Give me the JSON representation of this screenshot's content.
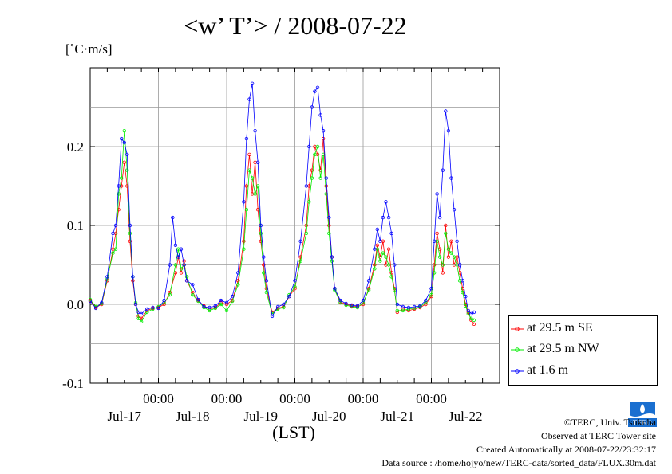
{
  "title": "<w’ T’> / 2008-07-22",
  "unit": "[˚C·m/s]",
  "xlabel": "(LST)",
  "legend": [
    "at 29.5 m SE",
    "at 29.5 m NW",
    "at 1.6 m"
  ],
  "credits": {
    "copyright": "©TERC, Univ. Tsukuba",
    "observed": "Observed at TERC Tower site",
    "created": "Created Automatically at 2008-07-22/23:32:17",
    "source": "Data source : /home/hojyo/new/TERC-data/sorted_data/FLUX.30m.dat"
  },
  "logo_text": "TERC",
  "colors": {
    "se": "#ff0000",
    "nw": "#00ee00",
    "low": "#0000ff",
    "grid": "#999999"
  },
  "chart_data": {
    "type": "line",
    "title": "<w’ T’> / 2008-07-22",
    "ylabel": "[˚C·m/s]",
    "xlabel": "(LST)",
    "ylim": [
      -0.1,
      0.3
    ],
    "yticks": [
      -0.1,
      0.0,
      0.1,
      0.2
    ],
    "ytick_labels": [
      "-0.1",
      "0.0",
      "0.1",
      "0.2"
    ],
    "xlim": [
      0,
      144
    ],
    "xticks": [
      24,
      48,
      72,
      96,
      120
    ],
    "xtick_labels": [
      "00:00",
      "00:00",
      "00:00",
      "00:00",
      "00:00"
    ],
    "day_labels": [
      "Jul-17",
      "Jul-18",
      "Jul-19",
      "Jul-20",
      "Jul-21",
      "Jul-22"
    ],
    "day_label_x": [
      12,
      36,
      60,
      84,
      108,
      132
    ],
    "x_unit": "hours from 2008-07-16 12:00 LST",
    "grid": true,
    "legend_position": "right",
    "series": [
      {
        "name": "at 29.5 m SE",
        "color": "#ff0000",
        "marker": "circle",
        "points": [
          [
            0,
            0.005
          ],
          [
            2,
            -0.004
          ],
          [
            4,
            0.0
          ],
          [
            6,
            0.03
          ],
          [
            8,
            0.07
          ],
          [
            9,
            0.09
          ],
          [
            10,
            0.12
          ],
          [
            11,
            0.15
          ],
          [
            12,
            0.18
          ],
          [
            13,
            0.15
          ],
          [
            14,
            0.08
          ],
          [
            15,
            0.03
          ],
          [
            16,
            0.0
          ],
          [
            17,
            -0.015
          ],
          [
            18,
            -0.018
          ],
          [
            20,
            -0.008
          ],
          [
            22,
            -0.005
          ],
          [
            24,
            -0.004
          ],
          [
            26,
            0.0
          ],
          [
            28,
            0.015
          ],
          [
            30,
            0.04
          ],
          [
            31,
            0.06
          ],
          [
            32,
            0.04
          ],
          [
            33,
            0.055
          ],
          [
            34,
            0.03
          ],
          [
            36,
            0.015
          ],
          [
            38,
            0.005
          ],
          [
            40,
            -0.002
          ],
          [
            42,
            -0.006
          ],
          [
            44,
            -0.004
          ],
          [
            46,
            0.002
          ],
          [
            48,
            0.0
          ],
          [
            50,
            0.005
          ],
          [
            52,
            0.03
          ],
          [
            54,
            0.08
          ],
          [
            55,
            0.15
          ],
          [
            56,
            0.19
          ],
          [
            57,
            0.14
          ],
          [
            58,
            0.18
          ],
          [
            59,
            0.12
          ],
          [
            60,
            0.08
          ],
          [
            61,
            0.05
          ],
          [
            62,
            0.02
          ],
          [
            64,
            -0.01
          ],
          [
            66,
            -0.005
          ],
          [
            68,
            -0.003
          ],
          [
            70,
            0.01
          ],
          [
            72,
            0.02
          ],
          [
            74,
            0.06
          ],
          [
            76,
            0.1
          ],
          [
            77,
            0.15
          ],
          [
            78,
            0.17
          ],
          [
            79,
            0.2
          ],
          [
            80,
            0.19
          ],
          [
            81,
            0.17
          ],
          [
            82,
            0.21
          ],
          [
            83,
            0.15
          ],
          [
            84,
            0.1
          ],
          [
            85,
            0.06
          ],
          [
            86,
            0.02
          ],
          [
            88,
            0.003
          ],
          [
            90,
            0.0
          ],
          [
            92,
            -0.002
          ],
          [
            94,
            -0.003
          ],
          [
            96,
            0.0
          ],
          [
            98,
            0.02
          ],
          [
            100,
            0.05
          ],
          [
            101,
            0.075
          ],
          [
            102,
            0.06
          ],
          [
            103,
            0.08
          ],
          [
            104,
            0.05
          ],
          [
            105,
            0.07
          ],
          [
            106,
            0.04
          ],
          [
            107,
            0.02
          ],
          [
            108,
            -0.01
          ],
          [
            110,
            -0.006
          ],
          [
            112,
            -0.008
          ],
          [
            114,
            -0.006
          ],
          [
            116,
            -0.004
          ],
          [
            118,
            0.0
          ],
          [
            120,
            0.01
          ],
          [
            121,
            0.05
          ],
          [
            122,
            0.09
          ],
          [
            123,
            0.07
          ],
          [
            124,
            0.04
          ],
          [
            125,
            0.1
          ],
          [
            126,
            0.06
          ],
          [
            127,
            0.08
          ],
          [
            128,
            0.05
          ],
          [
            129,
            0.06
          ],
          [
            130,
            0.04
          ],
          [
            131,
            0.02
          ],
          [
            132,
            0.0
          ],
          [
            133,
            -0.01
          ],
          [
            134,
            -0.02
          ],
          [
            135,
            -0.025
          ]
        ]
      },
      {
        "name": "at 29.5 m NW",
        "color": "#00ee00",
        "marker": "circle",
        "points": [
          [
            0,
            0.006
          ],
          [
            2,
            -0.003
          ],
          [
            4,
            0.001
          ],
          [
            6,
            0.032
          ],
          [
            8,
            0.065
          ],
          [
            9,
            0.07
          ],
          [
            10,
            0.14
          ],
          [
            11,
            0.16
          ],
          [
            12,
            0.22
          ],
          [
            13,
            0.17
          ],
          [
            14,
            0.09
          ],
          [
            15,
            0.035
          ],
          [
            16,
            0.002
          ],
          [
            17,
            -0.018
          ],
          [
            18,
            -0.022
          ],
          [
            20,
            -0.01
          ],
          [
            22,
            -0.006
          ],
          [
            24,
            -0.003
          ],
          [
            26,
            0.002
          ],
          [
            28,
            0.012
          ],
          [
            30,
            0.05
          ],
          [
            31,
            0.07
          ],
          [
            32,
            0.045
          ],
          [
            33,
            0.05
          ],
          [
            34,
            0.035
          ],
          [
            36,
            0.012
          ],
          [
            38,
            0.004
          ],
          [
            40,
            -0.004
          ],
          [
            42,
            -0.008
          ],
          [
            44,
            -0.005
          ],
          [
            46,
            0.0
          ],
          [
            48,
            -0.008
          ],
          [
            50,
            0.004
          ],
          [
            52,
            0.025
          ],
          [
            54,
            0.07
          ],
          [
            55,
            0.12
          ],
          [
            56,
            0.17
          ],
          [
            57,
            0.16
          ],
          [
            58,
            0.14
          ],
          [
            59,
            0.15
          ],
          [
            60,
            0.09
          ],
          [
            61,
            0.04
          ],
          [
            62,
            0.015
          ],
          [
            64,
            -0.012
          ],
          [
            66,
            -0.006
          ],
          [
            68,
            -0.004
          ],
          [
            70,
            0.012
          ],
          [
            72,
            0.022
          ],
          [
            74,
            0.055
          ],
          [
            76,
            0.09
          ],
          [
            77,
            0.13
          ],
          [
            78,
            0.16
          ],
          [
            79,
            0.19
          ],
          [
            80,
            0.2
          ],
          [
            81,
            0.16
          ],
          [
            82,
            0.19
          ],
          [
            83,
            0.14
          ],
          [
            84,
            0.09
          ],
          [
            85,
            0.055
          ],
          [
            86,
            0.018
          ],
          [
            88,
            0.002
          ],
          [
            90,
            -0.001
          ],
          [
            92,
            -0.003
          ],
          [
            94,
            -0.004
          ],
          [
            96,
            0.002
          ],
          [
            98,
            0.018
          ],
          [
            100,
            0.045
          ],
          [
            101,
            0.07
          ],
          [
            102,
            0.055
          ],
          [
            103,
            0.065
          ],
          [
            104,
            0.06
          ],
          [
            105,
            0.05
          ],
          [
            106,
            0.035
          ],
          [
            107,
            0.018
          ],
          [
            108,
            -0.008
          ],
          [
            110,
            -0.008
          ],
          [
            112,
            -0.006
          ],
          [
            114,
            -0.005
          ],
          [
            116,
            -0.003
          ],
          [
            118,
            0.002
          ],
          [
            120,
            0.012
          ],
          [
            121,
            0.04
          ],
          [
            122,
            0.08
          ],
          [
            123,
            0.06
          ],
          [
            124,
            0.05
          ],
          [
            125,
            0.09
          ],
          [
            126,
            0.07
          ],
          [
            127,
            0.065
          ],
          [
            128,
            0.06
          ],
          [
            129,
            0.05
          ],
          [
            130,
            0.03
          ],
          [
            131,
            0.015
          ],
          [
            132,
            -0.002
          ],
          [
            133,
            -0.012
          ],
          [
            134,
            -0.018
          ],
          [
            135,
            -0.02
          ]
        ]
      },
      {
        "name": "at 1.6 m",
        "color": "#0000ff",
        "marker": "circle",
        "points": [
          [
            0,
            0.004
          ],
          [
            2,
            -0.005
          ],
          [
            4,
            0.002
          ],
          [
            6,
            0.035
          ],
          [
            8,
            0.09
          ],
          [
            9,
            0.1
          ],
          [
            10,
            0.15
          ],
          [
            11,
            0.21
          ],
          [
            12,
            0.205
          ],
          [
            13,
            0.19
          ],
          [
            14,
            0.1
          ],
          [
            15,
            0.035
          ],
          [
            16,
            0.0
          ],
          [
            17,
            -0.01
          ],
          [
            18,
            -0.012
          ],
          [
            20,
            -0.006
          ],
          [
            22,
            -0.004
          ],
          [
            24,
            -0.005
          ],
          [
            26,
            0.005
          ],
          [
            28,
            0.05
          ],
          [
            29,
            0.11
          ],
          [
            30,
            0.075
          ],
          [
            31,
            0.06
          ],
          [
            32,
            0.07
          ],
          [
            33,
            0.05
          ],
          [
            34,
            0.03
          ],
          [
            36,
            0.025
          ],
          [
            38,
            0.006
          ],
          [
            40,
            -0.003
          ],
          [
            42,
            -0.004
          ],
          [
            44,
            -0.002
          ],
          [
            46,
            0.005
          ],
          [
            48,
            0.002
          ],
          [
            50,
            0.01
          ],
          [
            52,
            0.04
          ],
          [
            54,
            0.13
          ],
          [
            55,
            0.21
          ],
          [
            56,
            0.26
          ],
          [
            57,
            0.28
          ],
          [
            58,
            0.22
          ],
          [
            59,
            0.18
          ],
          [
            60,
            0.1
          ],
          [
            61,
            0.06
          ],
          [
            62,
            0.03
          ],
          [
            64,
            -0.015
          ],
          [
            66,
            -0.003
          ],
          [
            68,
            0.0
          ],
          [
            70,
            0.01
          ],
          [
            72,
            0.03
          ],
          [
            74,
            0.08
          ],
          [
            76,
            0.15
          ],
          [
            77,
            0.2
          ],
          [
            78,
            0.25
          ],
          [
            79,
            0.27
          ],
          [
            80,
            0.275
          ],
          [
            81,
            0.24
          ],
          [
            82,
            0.22
          ],
          [
            83,
            0.16
          ],
          [
            84,
            0.11
          ],
          [
            85,
            0.06
          ],
          [
            86,
            0.02
          ],
          [
            88,
            0.005
          ],
          [
            90,
            0.001
          ],
          [
            92,
            -0.001
          ],
          [
            94,
            -0.002
          ],
          [
            96,
            0.005
          ],
          [
            98,
            0.03
          ],
          [
            100,
            0.07
          ],
          [
            101,
            0.095
          ],
          [
            102,
            0.08
          ],
          [
            103,
            0.11
          ],
          [
            104,
            0.13
          ],
          [
            105,
            0.11
          ],
          [
            106,
            0.09
          ],
          [
            107,
            0.05
          ],
          [
            108,
            0.0
          ],
          [
            110,
            -0.003
          ],
          [
            112,
            -0.004
          ],
          [
            114,
            -0.003
          ],
          [
            116,
            -0.002
          ],
          [
            118,
            0.005
          ],
          [
            120,
            0.02
          ],
          [
            121,
            0.08
          ],
          [
            122,
            0.14
          ],
          [
            123,
            0.11
          ],
          [
            124,
            0.17
          ],
          [
            125,
            0.245
          ],
          [
            126,
            0.22
          ],
          [
            127,
            0.16
          ],
          [
            128,
            0.12
          ],
          [
            129,
            0.08
          ],
          [
            130,
            0.05
          ],
          [
            131,
            0.03
          ],
          [
            132,
            0.01
          ],
          [
            133,
            -0.008
          ],
          [
            134,
            -0.012
          ],
          [
            135,
            -0.01
          ]
        ]
      }
    ]
  }
}
